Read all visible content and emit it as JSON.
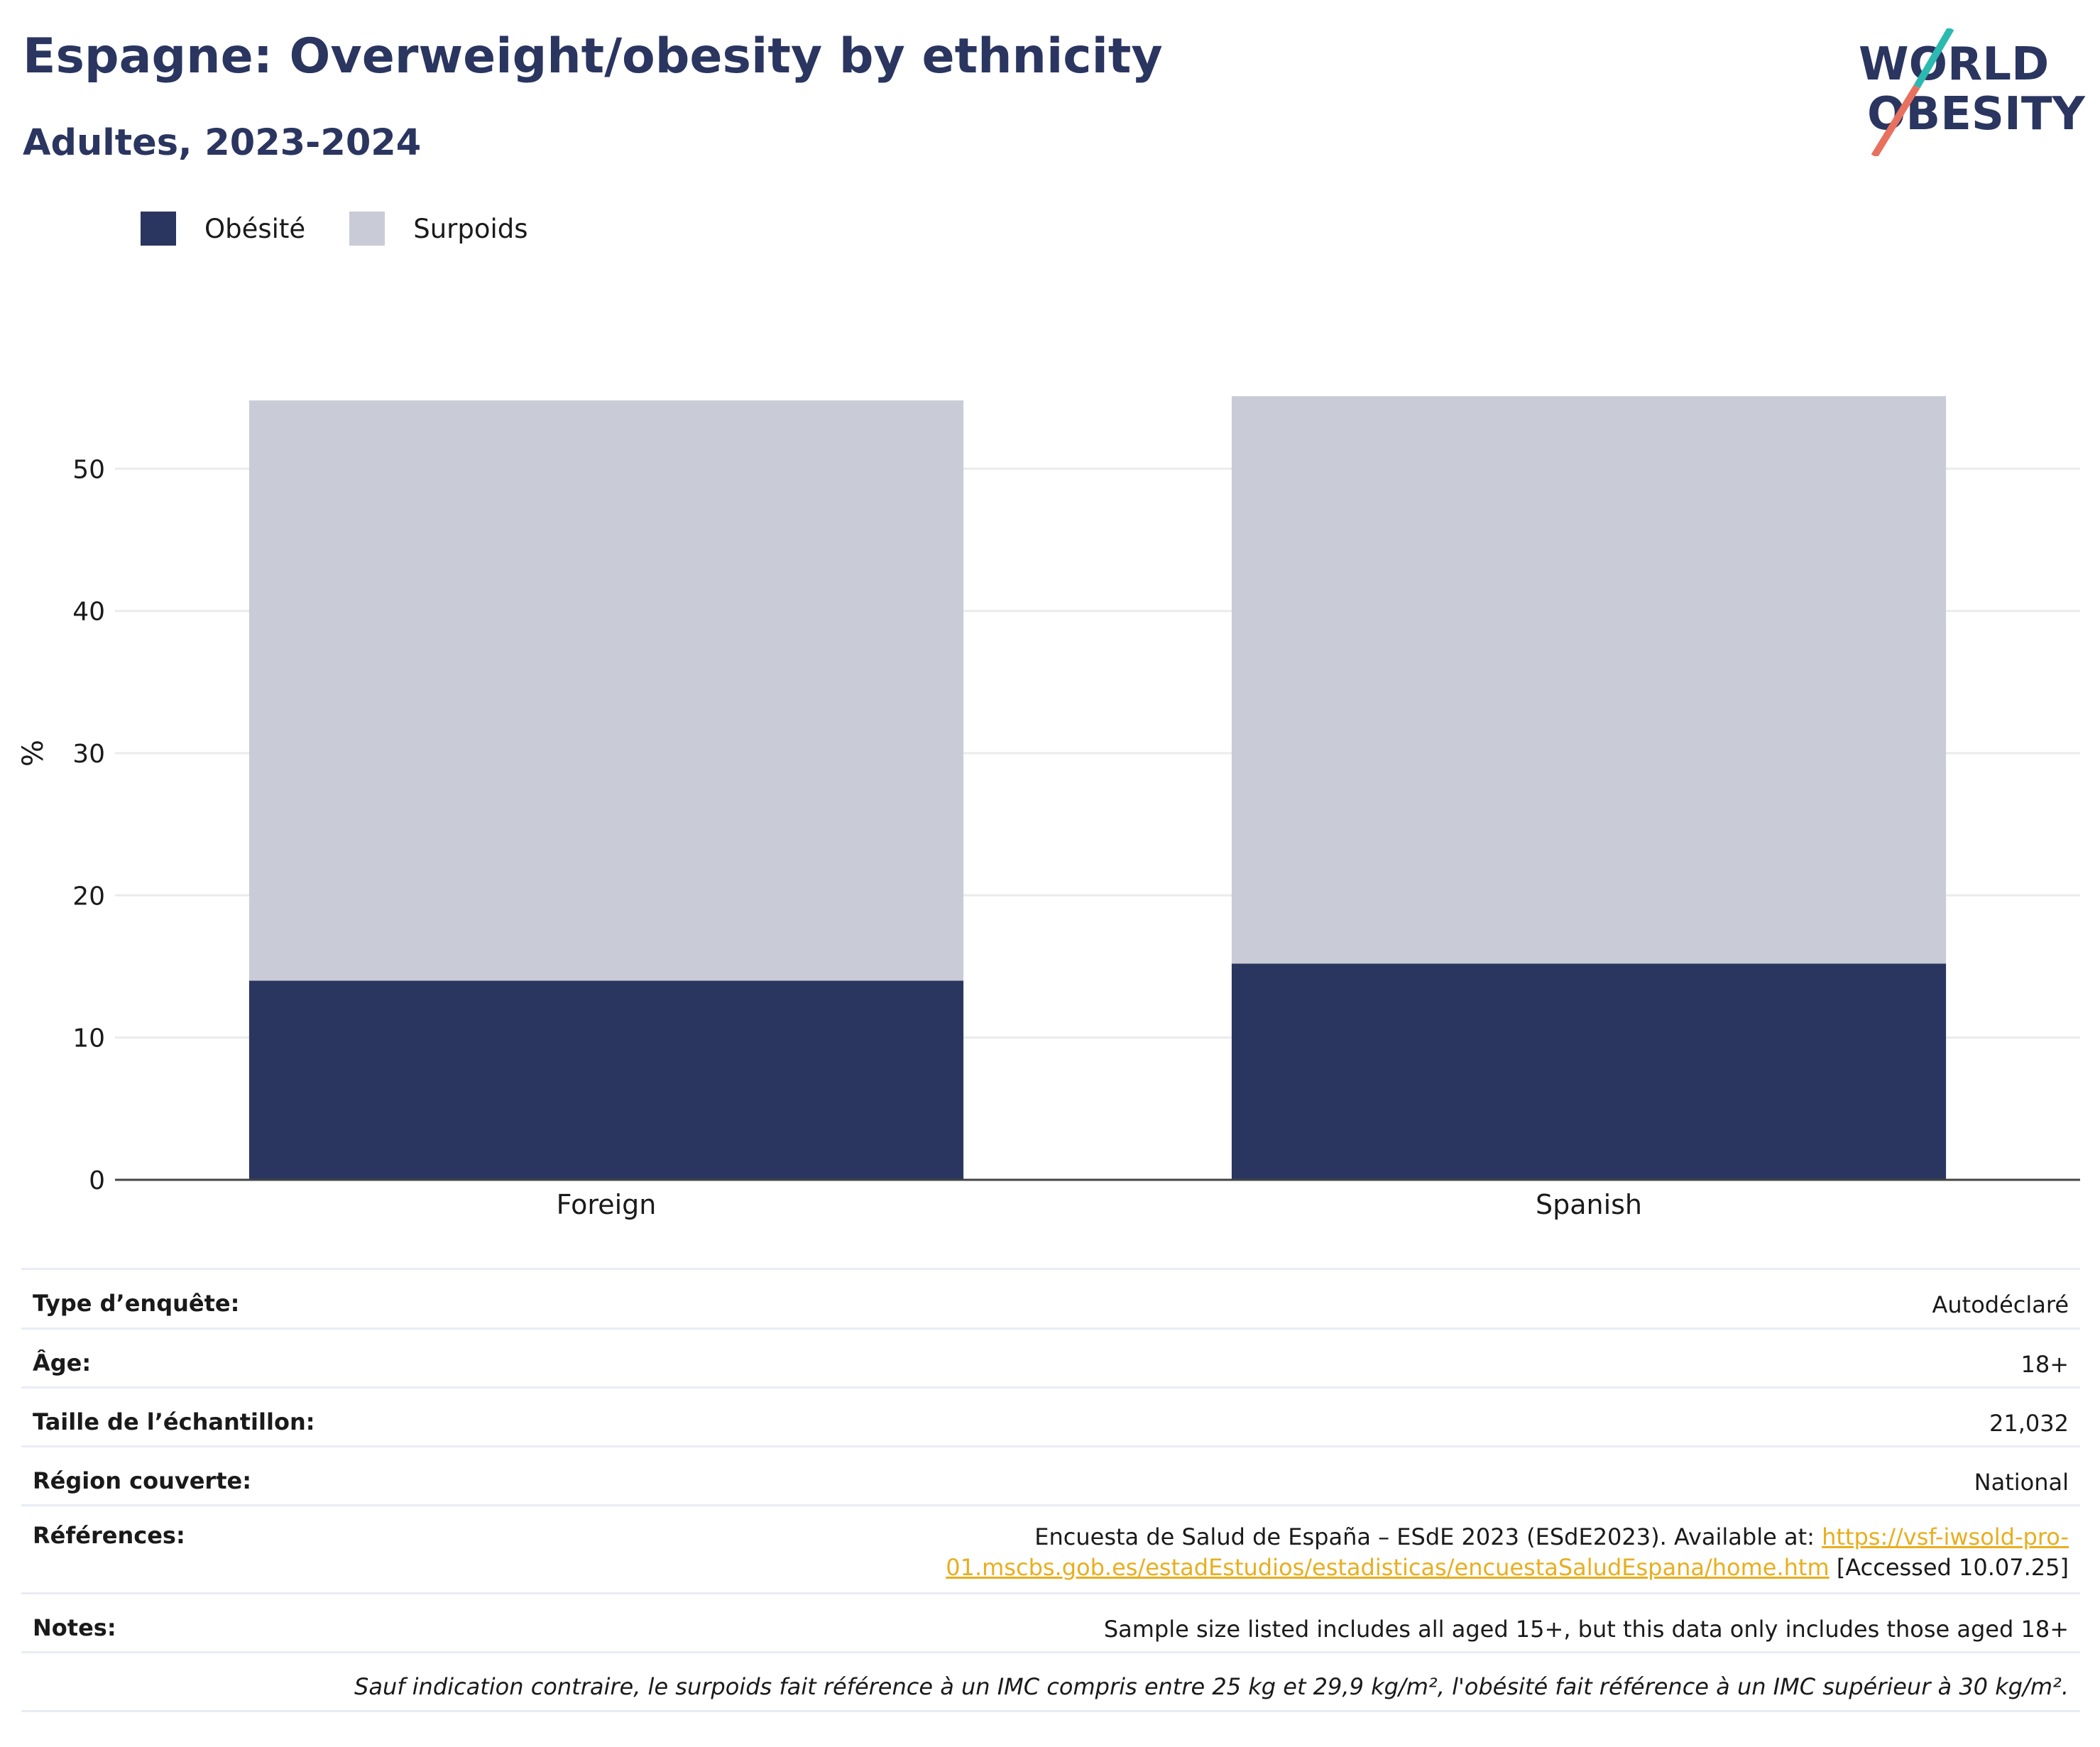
{
  "header": {
    "title": "Espagne: Overweight/obesity by ethnicity",
    "subtitle": "Adultes, 2023-2024"
  },
  "logo": {
    "line1": "WORLD",
    "line2": "OBESITY",
    "colors": {
      "text": "#2a3560",
      "slash_teal": "#2bb9b0",
      "slash_coral": "#e8705f"
    }
  },
  "legend": [
    {
      "label": "Obésité",
      "color": "#2a3660"
    },
    {
      "label": "Surpoids",
      "color": "#c9ccd7"
    }
  ],
  "chart_data": {
    "type": "bar",
    "stacked": true,
    "categories": [
      "Foreign",
      "Spanish"
    ],
    "series": [
      {
        "name": "Obésité",
        "values": [
          14.0,
          15.2
        ],
        "color": "#2a3660"
      },
      {
        "name": "Surpoids",
        "values": [
          40.8,
          39.9
        ],
        "color": "#c9ccd7"
      }
    ],
    "ylabel": "%",
    "ylim": [
      0,
      58
    ],
    "yticks": [
      0,
      10,
      20,
      30,
      40,
      50
    ],
    "grid": true,
    "legend_position": "top-left"
  },
  "info": {
    "survey_type": {
      "label": "Type d’enquête:",
      "value": "Autodéclaré"
    },
    "age": {
      "label": "Âge:",
      "value": "18+"
    },
    "sample_size": {
      "label": "Taille de l’échantillon:",
      "value": "21,032"
    },
    "region": {
      "label": "Région couverte:",
      "value": "National"
    },
    "references": {
      "label": "Références:",
      "text_before": "Encuesta de Salud de España – ESdE 2023 (ESdE2023). Available at: ",
      "link_part1": "https://vsf-iwsold-pro-",
      "link_part2": "01.mscbs.gob.es/estadEstudios/estadisticas/encuestaSaludEspana/home.htm",
      "text_after": " [Accessed 10.07.25]"
    },
    "notes": {
      "label": "Notes:",
      "value": "Sample size listed includes all aged 15+, but this data only includes those aged 18+"
    },
    "footnote": "Sauf indication contraire, le surpoids fait référence à un IMC compris entre 25 kg et 29,9 kg/m², l'obésité fait référence à un IMC supérieur à 30 kg/m²."
  }
}
